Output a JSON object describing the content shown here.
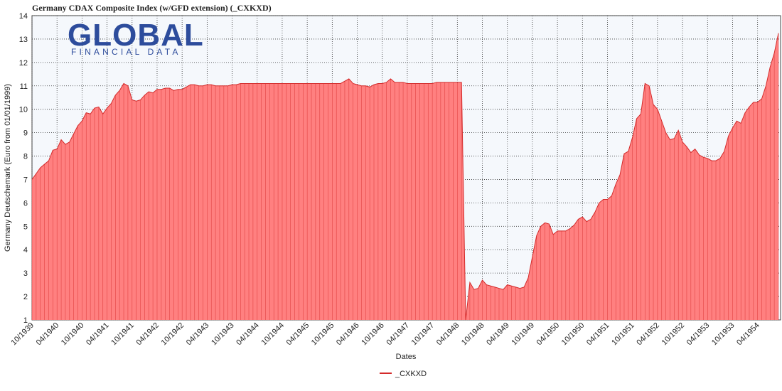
{
  "logo": {
    "name": "GLOBAL",
    "tagline": "FINANCIAL DATA"
  },
  "chart_data": {
    "type": "area",
    "title": "Germany CDAX Composite Index (w/GFD extension) (_CXKXD)",
    "y_label": "Germany Deutschemark (Euro from 01/01/1999)",
    "x_label": "Dates",
    "ylim": [
      1,
      14
    ],
    "yticks": [
      1,
      2,
      3,
      4,
      5,
      6,
      7,
      8,
      9,
      10,
      11,
      12,
      13,
      14
    ],
    "grid": true,
    "categories": [
      "10/1939",
      null,
      null,
      null,
      null,
      null,
      "04/1940",
      null,
      null,
      null,
      null,
      null,
      "10/1940",
      null,
      null,
      null,
      null,
      null,
      "04/1941",
      null,
      null,
      null,
      null,
      null,
      "10/1941",
      null,
      null,
      null,
      null,
      null,
      "04/1942",
      null,
      null,
      null,
      null,
      null,
      "10/1942",
      null,
      null,
      null,
      null,
      null,
      "04/1943",
      null,
      null,
      null,
      null,
      null,
      "10/1943",
      null,
      null,
      null,
      null,
      null,
      "04/1944",
      null,
      null,
      null,
      null,
      null,
      "10/1944",
      null,
      null,
      null,
      null,
      null,
      "04/1945",
      null,
      null,
      null,
      null,
      null,
      "10/1945",
      null,
      null,
      null,
      null,
      null,
      "04/1946",
      null,
      null,
      null,
      null,
      null,
      "10/1946",
      null,
      null,
      null,
      null,
      null,
      "04/1947",
      null,
      null,
      null,
      null,
      null,
      "10/1947",
      null,
      null,
      null,
      null,
      null,
      "04/1948",
      null,
      null,
      null,
      null,
      null,
      "10/1948",
      null,
      null,
      null,
      null,
      null,
      "04/1949",
      null,
      null,
      null,
      null,
      null,
      "10/1949",
      null,
      null,
      null,
      null,
      null,
      "04/1950",
      null,
      null,
      null,
      null,
      null,
      "10/1950",
      null,
      null,
      null,
      null,
      null,
      "04/1951",
      null,
      null,
      null,
      null,
      null,
      "10/1951",
      null,
      null,
      null,
      null,
      null,
      "04/1952",
      null,
      null,
      null,
      null,
      null,
      "10/1952",
      null,
      null,
      null,
      null,
      null,
      "04/1953",
      null,
      null,
      null,
      null,
      null,
      "10/1953",
      null,
      null,
      null,
      null,
      null,
      "04/1954",
      null,
      null,
      null,
      null,
      null
    ],
    "series": [
      {
        "name": "_CXKXD",
        "color": "#ff8080",
        "line_color": "#d42a2a",
        "values": [
          7.0,
          7.25,
          7.5,
          7.65,
          7.8,
          8.25,
          8.3,
          8.7,
          8.5,
          8.6,
          8.95,
          9.3,
          9.5,
          9.85,
          9.8,
          10.05,
          10.1,
          9.8,
          10.05,
          10.25,
          10.6,
          10.8,
          11.1,
          11.0,
          10.4,
          10.35,
          10.4,
          10.6,
          10.75,
          10.7,
          10.85,
          10.85,
          10.9,
          10.9,
          10.8,
          10.85,
          10.85,
          10.95,
          11.05,
          11.05,
          11.0,
          11.0,
          11.05,
          11.05,
          11.0,
          11.0,
          11.0,
          11.0,
          11.05,
          11.05,
          11.1,
          11.1,
          11.1,
          11.1,
          11.1,
          11.1,
          11.1,
          11.1,
          11.1,
          11.1,
          11.1,
          11.1,
          11.1,
          11.1,
          11.1,
          11.1,
          11.1,
          11.1,
          11.1,
          11.1,
          11.1,
          11.1,
          11.1,
          11.1,
          11.1,
          11.2,
          11.3,
          11.1,
          11.05,
          11.0,
          11.0,
          10.95,
          11.05,
          11.1,
          11.1,
          11.15,
          11.3,
          11.15,
          11.15,
          11.15,
          11.1,
          11.1,
          11.1,
          11.1,
          11.1,
          11.1,
          11.1,
          11.15,
          11.15,
          11.15,
          11.15,
          11.15,
          11.15,
          11.15,
          1.0,
          2.6,
          2.3,
          2.35,
          2.7,
          2.5,
          2.45,
          2.4,
          2.35,
          2.3,
          2.5,
          2.45,
          2.4,
          2.35,
          2.4,
          2.8,
          3.7,
          4.6,
          5.0,
          5.15,
          5.1,
          4.65,
          4.8,
          4.8,
          4.8,
          4.9,
          5.05,
          5.3,
          5.4,
          5.2,
          5.3,
          5.6,
          6.0,
          6.15,
          6.15,
          6.3,
          6.8,
          7.2,
          8.1,
          8.2,
          8.8,
          9.6,
          9.8,
          11.1,
          11.0,
          10.2,
          10.0,
          9.5,
          9.0,
          8.7,
          8.75,
          9.1,
          8.6,
          8.4,
          8.15,
          8.3,
          8.05,
          7.95,
          7.9,
          7.8,
          7.8,
          7.9,
          8.2,
          8.85,
          9.2,
          9.5,
          9.4,
          9.85,
          10.1,
          10.3,
          10.3,
          10.45,
          11.0,
          11.8,
          12.4,
          13.25
        ]
      }
    ]
  }
}
